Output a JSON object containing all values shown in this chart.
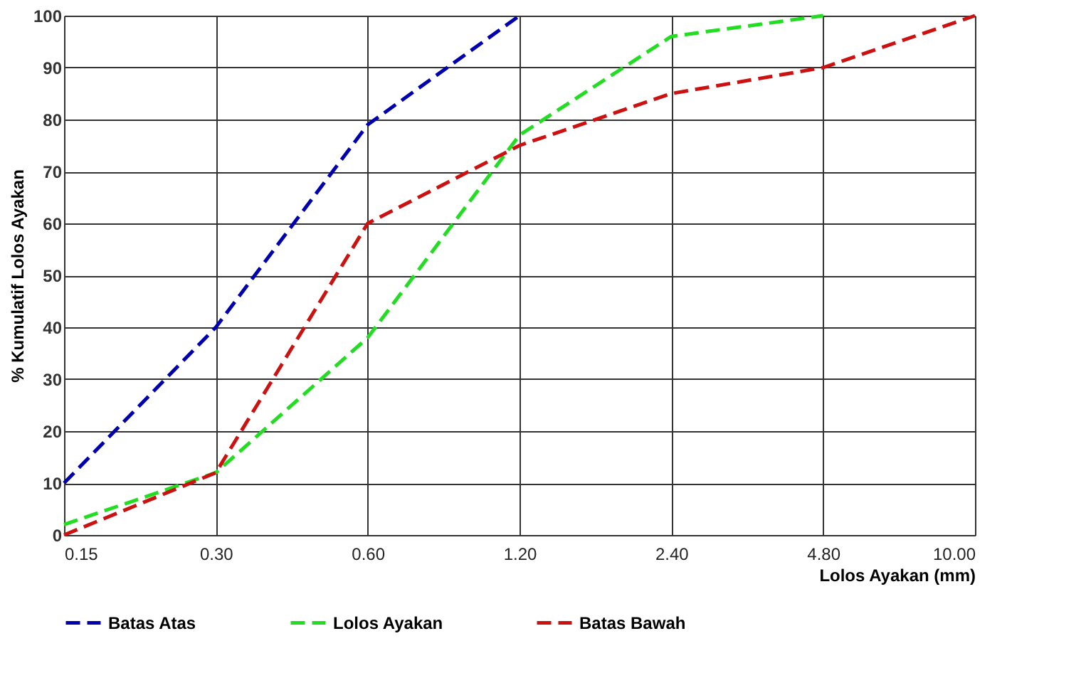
{
  "chart_data": {
    "type": "line",
    "xlabel": "Lolos Ayakan (mm)",
    "ylabel": "% Kumulatif Lolos Ayakan",
    "categories": [
      "0.15",
      "0.30",
      "0.60",
      "1.20",
      "2.40",
      "4.80",
      "10.00"
    ],
    "series": [
      {
        "name": "Batas Atas",
        "color": "#0000b0",
        "line_style": "dashed",
        "values": [
          10,
          40,
          79,
          100,
          null,
          null,
          null
        ]
      },
      {
        "name": "Lolos Ayakan",
        "color": "#22dd22",
        "line_style": "dashed",
        "values": [
          2,
          12,
          38,
          77,
          96,
          100,
          null
        ]
      },
      {
        "name": "Batas Bawah",
        "color": "#cc1111",
        "line_style": "dashed",
        "values": [
          0,
          12,
          60,
          75,
          85,
          90,
          100
        ]
      }
    ],
    "ylim": [
      0,
      100
    ],
    "yticks": [
      0,
      10,
      20,
      30,
      40,
      50,
      60,
      70,
      80,
      90,
      100
    ],
    "grid": true,
    "legend": "bottom",
    "marker": "none"
  }
}
